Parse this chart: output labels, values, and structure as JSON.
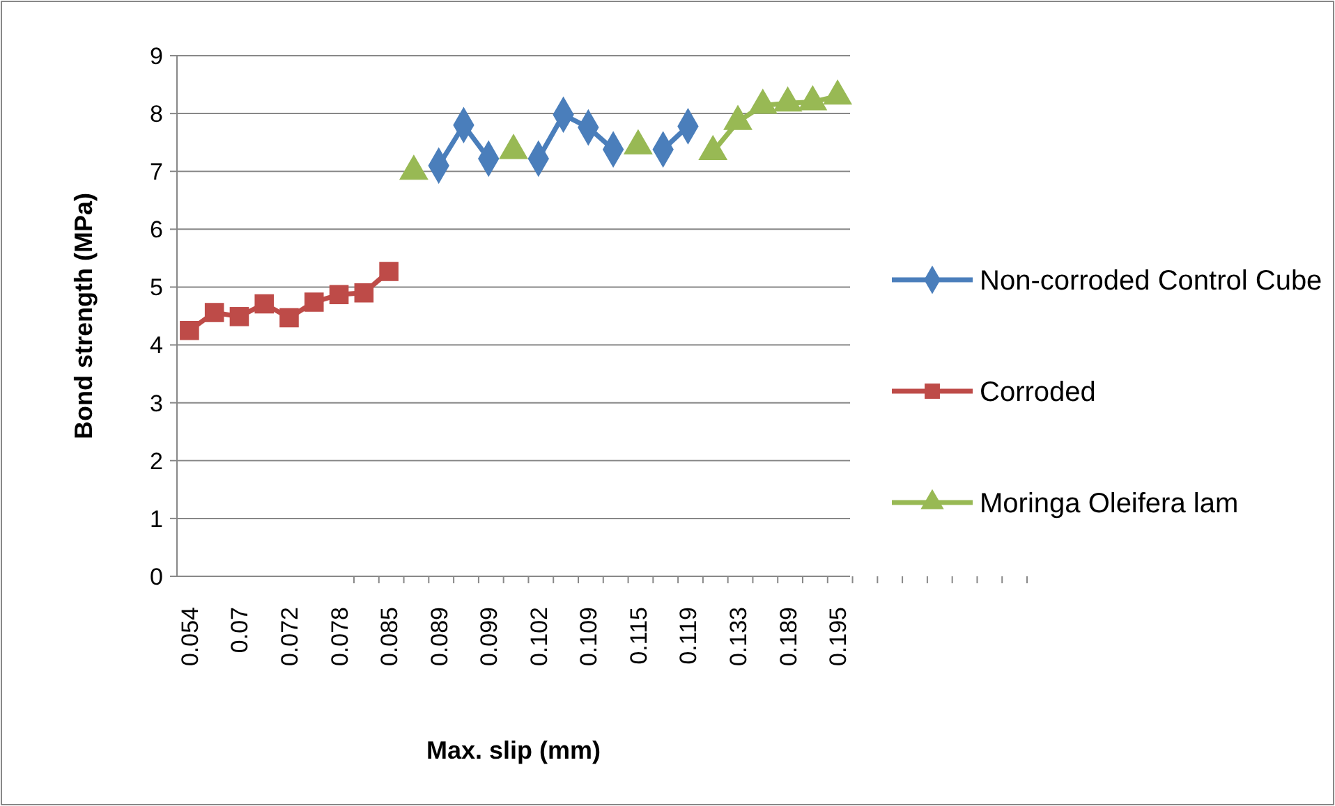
{
  "chart_data": {
    "type": "line",
    "xlabel": "Max. slip (mm)",
    "ylabel": "Bond strength (MPa)",
    "categories": [
      "0.054",
      null,
      "0.07",
      null,
      "0.072",
      null,
      "0.078",
      null,
      "0.085",
      null,
      "0.089",
      null,
      "0.099",
      null,
      "0.102",
      null,
      "0.109",
      null,
      "0.115",
      null,
      "0.119",
      null,
      "0.133",
      null,
      "0.189",
      null,
      "0.195"
    ],
    "series": [
      {
        "name": "Non-corroded Control Cube",
        "color": "#4a7ebb",
        "marker": "diamond",
        "values": [
          null,
          null,
          null,
          null,
          null,
          null,
          null,
          null,
          null,
          null,
          7.1,
          7.8,
          7.22,
          null,
          7.22,
          7.98,
          7.76,
          7.38,
          null,
          7.38,
          7.78,
          null,
          null,
          null,
          null,
          null,
          null
        ]
      },
      {
        "name": "Corroded",
        "color": "#be4b48",
        "marker": "square",
        "values": [
          4.25,
          4.56,
          4.49,
          4.71,
          4.47,
          4.74,
          4.87,
          4.9,
          5.27,
          null,
          null,
          null,
          null,
          null,
          null,
          null,
          null,
          null,
          null,
          null,
          null,
          null,
          null,
          null,
          null,
          null,
          null
        ]
      },
      {
        "name": "Moringa Oleifera lam",
        "color": "#98b954",
        "marker": "triangle",
        "values": [
          null,
          null,
          null,
          null,
          null,
          null,
          null,
          null,
          null,
          7.0,
          null,
          null,
          null,
          7.36,
          null,
          null,
          null,
          null,
          7.44,
          null,
          null,
          7.34,
          7.86,
          8.14,
          8.18,
          8.2,
          8.3
        ]
      }
    ],
    "ylim": [
      0,
      9
    ],
    "yticks": [
      0,
      1,
      2,
      3,
      4,
      5,
      6,
      7,
      8,
      9
    ],
    "grid": "y",
    "legend": "right"
  }
}
